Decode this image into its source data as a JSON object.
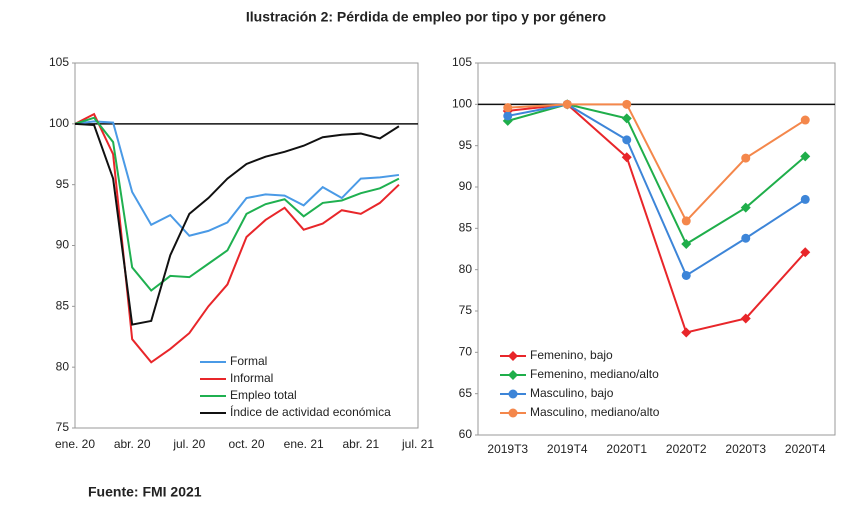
{
  "title": "Ilustración 2: Pérdida de empleo por tipo y por género",
  "source": "Fuente: FMI 2021",
  "chart_data": [
    {
      "type": "line",
      "categories": [
        "ene. 20",
        null,
        null,
        "abr. 20",
        null,
        null,
        "jul. 20",
        null,
        null,
        "oct. 20",
        null,
        null,
        "ene. 21",
        null,
        null,
        "abr. 21",
        null,
        null,
        "jul. 21"
      ],
      "series": [
        {
          "name": "Formal",
          "color": "#4a9ae6",
          "values": [
            100,
            100.2,
            100.1,
            94.4,
            91.7,
            92.5,
            90.8,
            91.2,
            91.9,
            93.9,
            94.2,
            94.1,
            93.3,
            94.8,
            93.9,
            95.5,
            95.6,
            95.8,
            null
          ]
        },
        {
          "name": "Informal",
          "color": "#e8262a",
          "values": [
            100,
            100.8,
            97.5,
            82.3,
            80.4,
            81.5,
            82.8,
            85,
            86.8,
            90.7,
            92.1,
            93.1,
            91.3,
            91.8,
            92.9,
            92.6,
            93.5,
            95,
            null
          ]
        },
        {
          "name": "Empleo total",
          "color": "#1fb050",
          "values": [
            100,
            100.5,
            98.5,
            88.2,
            86.3,
            87.5,
            87.4,
            88.5,
            89.6,
            92.6,
            93.4,
            93.8,
            92.4,
            93.5,
            93.7,
            94.3,
            94.7,
            95.5,
            null
          ]
        },
        {
          "name": "Índice de actividad económica",
          "color": "#111111",
          "values": [
            100,
            99.9,
            95.5,
            83.5,
            83.8,
            89.2,
            92.6,
            93.9,
            95.5,
            96.7,
            97.3,
            97.7,
            98.2,
            98.9,
            99.1,
            99.2,
            98.8,
            99.8,
            null
          ]
        }
      ],
      "ylim": [
        75,
        105
      ],
      "yticks": [
        75,
        80,
        85,
        90,
        95,
        100,
        105
      ],
      "reference_line": 100,
      "legend": "bottom-right"
    },
    {
      "type": "line",
      "categories": [
        "2019T3",
        "2019T4",
        "2020T1",
        "2020T2",
        "2020T3",
        "2020T4"
      ],
      "series": [
        {
          "name": "Femenino, bajo",
          "color": "#e8262a",
          "marker": "diamond",
          "values": [
            99.2,
            100,
            93.6,
            72.4,
            74.1,
            82.1
          ]
        },
        {
          "name": "Femenino, mediano/alto",
          "color": "#1fae4a",
          "marker": "diamond",
          "values": [
            98,
            100,
            98.3,
            83.1,
            87.5,
            93.7
          ]
        },
        {
          "name": "Masculino, bajo",
          "color": "#3d85d8",
          "marker": "circle",
          "values": [
            98.6,
            100,
            95.7,
            79.3,
            83.8,
            88.5
          ]
        },
        {
          "name": "Masculino, mediano/alto",
          "color": "#f4874b",
          "marker": "circle",
          "values": [
            99.6,
            100,
            100,
            85.9,
            93.5,
            98.1
          ]
        }
      ],
      "ylim": [
        60,
        105
      ],
      "yticks": [
        60,
        65,
        70,
        75,
        80,
        85,
        90,
        95,
        100,
        105
      ],
      "reference_line": 100,
      "legend": "bottom-left"
    }
  ]
}
